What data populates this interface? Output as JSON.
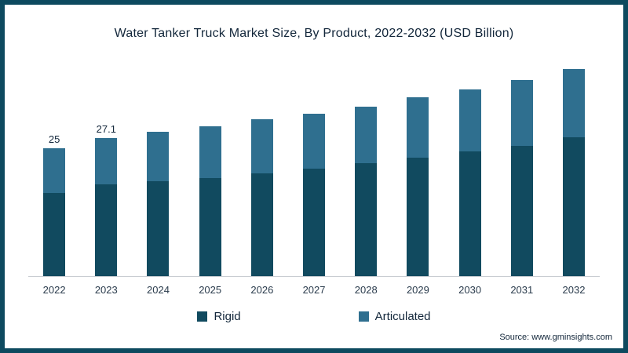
{
  "title": "Water Tanker Truck Market Size, By Product, 2022-2032 (USD Billion)",
  "source": {
    "prefix": "Source:",
    "text": "www.gminsights.com"
  },
  "colors": {
    "frame_border": "#0d4a5f",
    "rigid": "#114a5f",
    "articulated": "#2f6f8f",
    "axis_line": "#c9cdd2",
    "text": "#12263a"
  },
  "legend": [
    {
      "label": "Rigid",
      "color": "#114a5f"
    },
    {
      "label": "Articulated",
      "color": "#2f6f8f"
    }
  ],
  "chart_data": {
    "type": "bar",
    "stacked": true,
    "title": "Water Tanker Truck Market Size, By Product, 2022-2032 (USD Billion)",
    "xlabel": "",
    "ylabel": "USD Billion",
    "ylim": [
      0,
      45
    ],
    "grid": false,
    "legend_position": "bottom",
    "categories": [
      "2022",
      "2023",
      "2024",
      "2025",
      "2026",
      "2027",
      "2028",
      "2029",
      "2030",
      "2031",
      "2032"
    ],
    "series": [
      {
        "name": "Rigid",
        "color": "#114a5f",
        "values": [
          16.3,
          18.0,
          18.6,
          19.2,
          20.2,
          21.1,
          22.1,
          23.2,
          24.4,
          25.6,
          27.2
        ]
      },
      {
        "name": "Articulated",
        "color": "#2f6f8f",
        "values": [
          8.7,
          9.1,
          9.7,
          10.1,
          10.6,
          10.7,
          11.1,
          11.8,
          12.1,
          12.9,
          13.4
        ]
      }
    ],
    "totals": [
      25,
      27.1,
      28.3,
      29.3,
      30.8,
      31.8,
      33.2,
      35.0,
      36.5,
      38.5,
      40.6
    ],
    "bar_labels": [
      "25",
      "27.1",
      "",
      "",
      "",
      "",
      "",
      "",
      "",
      "",
      ""
    ]
  }
}
